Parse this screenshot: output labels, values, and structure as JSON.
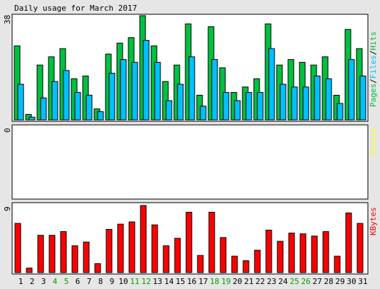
{
  "title": "Daily usage for March 2017",
  "colors": {
    "background": "#e6e6e6",
    "panel": "#ffffff",
    "pages": "#00c040",
    "files": "#00c0ff",
    "hits": "#00c040",
    "visits": "#ffff00",
    "kbytes": "#ff0000",
    "weekend_label": "#00a000",
    "weekday_label": "#000000"
  },
  "chart_data": [
    {
      "type": "bar",
      "panel": "hits-files",
      "ymax_label": "38",
      "ylim": [
        0,
        38
      ],
      "legend": [
        "Pages",
        "Files",
        "Hits"
      ],
      "categories": [
        "1",
        "2",
        "3",
        "4",
        "5",
        "6",
        "7",
        "8",
        "9",
        "10",
        "11",
        "12",
        "13",
        "14",
        "15",
        "16",
        "17",
        "18",
        "19",
        "20",
        "21",
        "22",
        "23",
        "24",
        "25",
        "26",
        "27",
        "28",
        "29",
        "30",
        "31"
      ],
      "series": [
        {
          "name": "Hits",
          "values": [
            27,
            2,
            20,
            23,
            26,
            15,
            16,
            4,
            24,
            28,
            30,
            38,
            27,
            14,
            20,
            35,
            9,
            34,
            19,
            10,
            12,
            15,
            35,
            20,
            22,
            21,
            20,
            23,
            9,
            33,
            26
          ]
        },
        {
          "name": "Files",
          "values": [
            13,
            1,
            8,
            14,
            18,
            10,
            9,
            3,
            17,
            22,
            21,
            29,
            21,
            7,
            13,
            23,
            5,
            22,
            10,
            7,
            10,
            10,
            26,
            13,
            12,
            12,
            16,
            15,
            6,
            22,
            16
          ]
        }
      ]
    },
    {
      "type": "bar",
      "panel": "visits",
      "ymax_label": "0",
      "legend": [
        "Visits"
      ],
      "categories": [
        "1",
        "2",
        "3",
        "4",
        "5",
        "6",
        "7",
        "8",
        "9",
        "10",
        "11",
        "12",
        "13",
        "14",
        "15",
        "16",
        "17",
        "18",
        "19",
        "20",
        "21",
        "22",
        "23",
        "24",
        "25",
        "26",
        "27",
        "28",
        "29",
        "30",
        "31"
      ],
      "series": [
        {
          "name": "Visits",
          "values": [
            0,
            0,
            0,
            0,
            0,
            0,
            0,
            0,
            0,
            0,
            0,
            0,
            0,
            0,
            0,
            0,
            0,
            0,
            0,
            0,
            0,
            0,
            0,
            0,
            0,
            0,
            0,
            0,
            0,
            0,
            0
          ]
        }
      ]
    },
    {
      "type": "bar",
      "panel": "kbytes",
      "ymax_label": "9",
      "ylim": [
        0,
        9
      ],
      "legend": [
        "KBytes"
      ],
      "categories": [
        "1",
        "2",
        "3",
        "4",
        "5",
        "6",
        "7",
        "8",
        "9",
        "10",
        "11",
        "12",
        "13",
        "14",
        "15",
        "16",
        "17",
        "18",
        "19",
        "20",
        "21",
        "22",
        "23",
        "24",
        "25",
        "26",
        "27",
        "28",
        "29",
        "30",
        "31"
      ],
      "weekend_days": [
        "4",
        "5",
        "11",
        "12",
        "18",
        "19",
        "25",
        "26"
      ],
      "series": [
        {
          "name": "KBytes",
          "values": [
            6.6,
            0.6,
            5.0,
            5.0,
            5.5,
            3.6,
            4.1,
            1.2,
            5.8,
            6.5,
            6.8,
            9.0,
            6.4,
            3.6,
            4.6,
            8.1,
            2.3,
            8.1,
            4.7,
            2.2,
            1.6,
            3.0,
            5.7,
            4.2,
            5.3,
            5.2,
            4.9,
            5.5,
            2.2,
            8.0,
            6.6
          ]
        }
      ]
    }
  ]
}
